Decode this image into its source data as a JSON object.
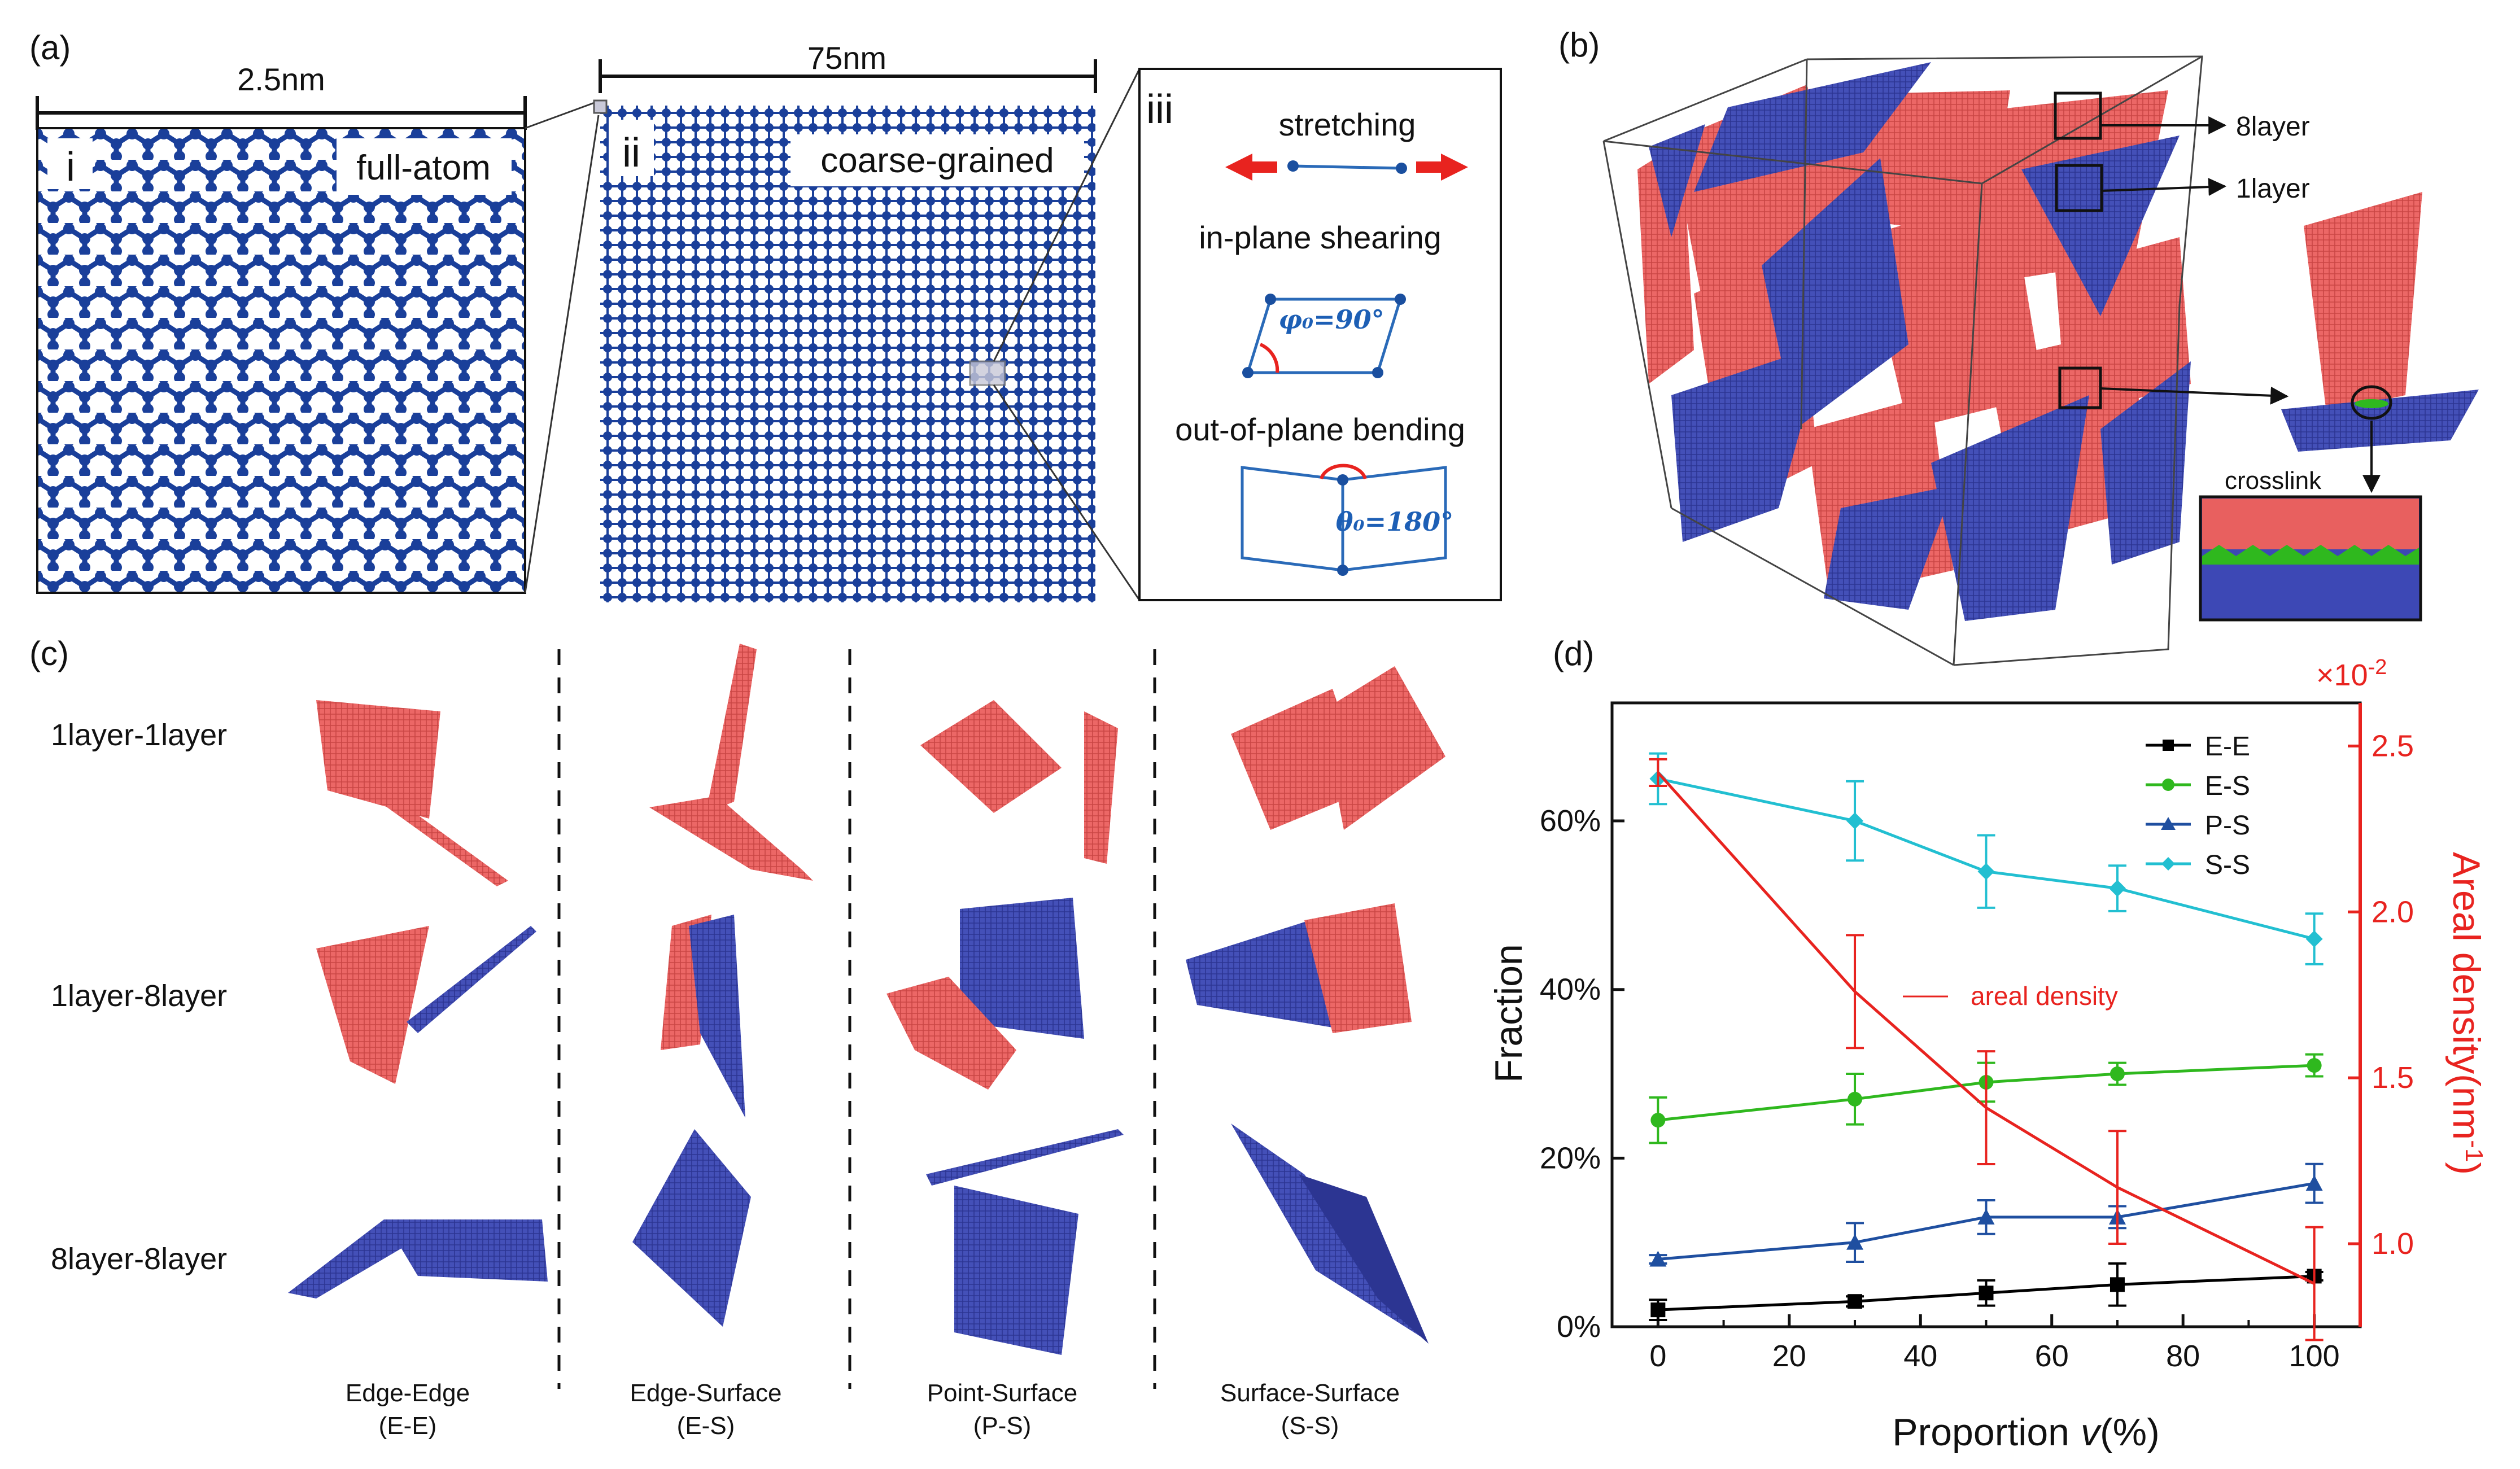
{
  "panel_labels": {
    "a": "(a)",
    "b": "(b)",
    "c": "(c)",
    "d": "(d)"
  },
  "panel_a": {
    "i": {
      "roman": "i",
      "scale": "2.5nm",
      "caption": "full-atom"
    },
    "ii": {
      "roman": "ii",
      "scale": "75nm",
      "caption": "coarse-grained"
    },
    "iii": {
      "roman": "iii",
      "stretching": "stretching",
      "shearing": "in-plane shearing",
      "shearing_angle": "φ₀=90°",
      "bending": "out-of-plane bending",
      "bending_angle": "θ₀=180°"
    }
  },
  "panel_b": {
    "label_8layer": "8layer",
    "label_1layer": "1layer",
    "crosslink": "crosslink"
  },
  "panel_c": {
    "rows": [
      "1layer-1layer",
      "1layer-8layer",
      "8layer-8layer"
    ],
    "columns": [
      {
        "name": "Edge-Edge",
        "abbr": "(E-E)"
      },
      {
        "name": "Edge-Surface",
        "abbr": "(E-S)"
      },
      {
        "name": "Point-Surface",
        "abbr": "(P-S)"
      },
      {
        "name": "Surface-Surface",
        "abbr": "(S-S)"
      }
    ]
  },
  "colors": {
    "red_sheet": "#e8605f",
    "blue_sheet": "#3d48b5",
    "atom_blue": "#1a3f9a",
    "ee": "#000000",
    "es": "#2fb81e",
    "ps": "#1f4fa0",
    "ss": "#22bfd1",
    "density": "#e8231f"
  },
  "chart_data": {
    "type": "line",
    "xlabel": "Proportion",
    "xlabel_var": "v",
    "xlabel_unit": "(%)",
    "ylabel": "Fraction",
    "y2label": "Areal density(nm",
    "y2label_sup": "-1",
    "y2label_end": ")",
    "y2_multiplier": "×10",
    "y2_multiplier_sup": "-2",
    "x": [
      0,
      30,
      50,
      70,
      100
    ],
    "xlim": [
      -7,
      107
    ],
    "ylim": [
      0,
      0.74
    ],
    "y2lim": [
      0.0075,
      0.0263
    ],
    "x_ticks": [
      "0",
      "20",
      "40",
      "60",
      "80",
      "100"
    ],
    "y_ticks": [
      "0%",
      "20%",
      "40%",
      "60%"
    ],
    "y2_ticks": [
      "1.0",
      "1.5",
      "2.0",
      "2.5"
    ],
    "series": [
      {
        "name": "E-E",
        "axis": "left",
        "color": "#000000",
        "marker": "square",
        "values": [
          0.02,
          0.03,
          0.04,
          0.05,
          0.06
        ],
        "errors": [
          0.012,
          0.006,
          0.015,
          0.025,
          0.005
        ]
      },
      {
        "name": "E-S",
        "axis": "left",
        "color": "#2fb81e",
        "marker": "circle",
        "values": [
          0.245,
          0.27,
          0.29,
          0.3,
          0.31
        ],
        "errors": [
          0.027,
          0.03,
          0.023,
          0.013,
          0.013
        ]
      },
      {
        "name": "P-S",
        "axis": "left",
        "color": "#1f4fa0",
        "marker": "triangle",
        "values": [
          0.08,
          0.1,
          0.13,
          0.13,
          0.17
        ],
        "errors": [
          0.005,
          0.023,
          0.02,
          0.013,
          0.023
        ]
      },
      {
        "name": "S-S",
        "axis": "left",
        "color": "#22bfd1",
        "marker": "diamond",
        "values": [
          0.65,
          0.6,
          0.54,
          0.52,
          0.46
        ],
        "errors": [
          0.03,
          0.047,
          0.043,
          0.027,
          0.03
        ]
      },
      {
        "name": "areal density",
        "axis": "right",
        "color": "#e8231f",
        "marker": "none",
        "values": [
          0.0242,
          0.0176,
          0.0141,
          0.0117,
          0.0088
        ],
        "errors": [
          0.0004,
          0.0017,
          0.0017,
          0.0017,
          0.0017
        ]
      }
    ],
    "legend": [
      "E-E",
      "E-S",
      "P-S",
      "S-S"
    ],
    "annotation": "areal density"
  }
}
